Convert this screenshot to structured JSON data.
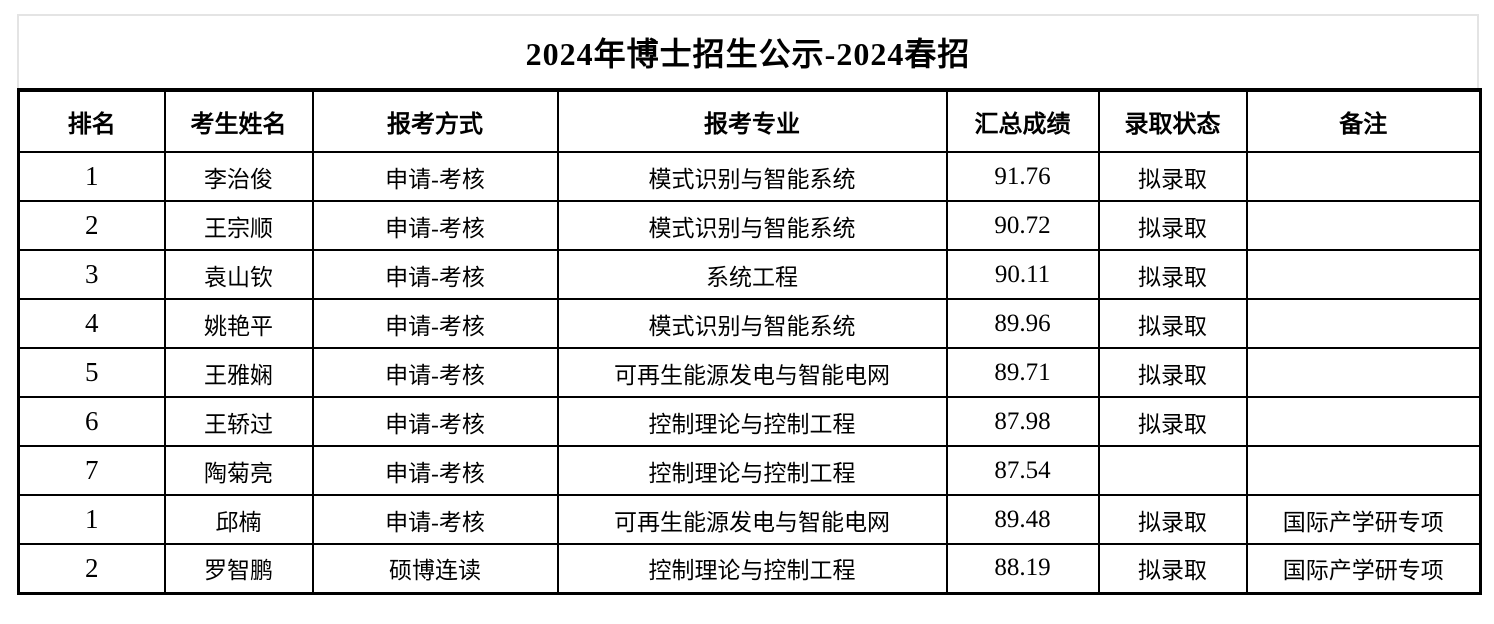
{
  "page": {
    "title": "2024年博士招生公示-2024春招"
  },
  "colors": {
    "text": "#000000",
    "table_border": "#000000",
    "title_outline": "#e4e4e4",
    "background": "#ffffff"
  },
  "table": {
    "columns": [
      "排名",
      "考生姓名",
      "报考方式",
      "报考专业",
      "汇总成绩",
      "录取状态",
      "备注"
    ],
    "rows": [
      [
        "1",
        "李治俊",
        "申请-考核",
        "模式识别与智能系统",
        "91.76",
        "拟录取",
        ""
      ],
      [
        "2",
        "王宗顺",
        "申请-考核",
        "模式识别与智能系统",
        "90.72",
        "拟录取",
        ""
      ],
      [
        "3",
        "袁山钦",
        "申请-考核",
        "系统工程",
        "90.11",
        "拟录取",
        ""
      ],
      [
        "4",
        "姚艳平",
        "申请-考核",
        "模式识别与智能系统",
        "89.96",
        "拟录取",
        ""
      ],
      [
        "5",
        "王雅娴",
        "申请-考核",
        "可再生能源发电与智能电网",
        "89.71",
        "拟录取",
        ""
      ],
      [
        "6",
        "王轿过",
        "申请-考核",
        "控制理论与控制工程",
        "87.98",
        "拟录取",
        ""
      ],
      [
        "7",
        "陶菊亮",
        "申请-考核",
        "控制理论与控制工程",
        "87.54",
        "",
        ""
      ],
      [
        "1",
        "邱楠",
        "申请-考核",
        "可再生能源发电与智能电网",
        "89.48",
        "拟录取",
        "国际产学研专项"
      ],
      [
        "2",
        "罗智鹏",
        "硕博连读",
        "控制理论与控制工程",
        "88.19",
        "拟录取",
        "国际产学研专项"
      ]
    ]
  }
}
